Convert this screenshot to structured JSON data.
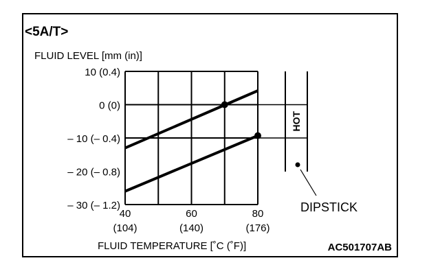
{
  "header": {
    "title": "<5A/T>"
  },
  "figure_id": "AC501707AB",
  "chart_data": {
    "type": "line",
    "ylabel": "FLUID LEVEL [mm (in)]",
    "xlabel": "FLUID TEMPERATURE [˚C (˚F)]",
    "xlim": [
      40,
      80
    ],
    "ylim": [
      -30,
      10
    ],
    "x_ticks": [
      {
        "value": 40,
        "label": "40",
        "sub": "(104)"
      },
      {
        "value": 60,
        "label": "60",
        "sub": "(140)"
      },
      {
        "value": 80,
        "label": "80",
        "sub": "(176)"
      }
    ],
    "y_ticks": [
      {
        "value": 10,
        "label": "10 (0.4)"
      },
      {
        "value": 0,
        "label": "0 (0)"
      },
      {
        "value": -10,
        "label": "– 10 (– 0.4)"
      },
      {
        "value": -20,
        "label": "– 20 (– 0.8)"
      },
      {
        "value": -30,
        "label": "– 30 (– 1.2)"
      }
    ],
    "x_grid": [
      40,
      50,
      60,
      70,
      80
    ],
    "y_grid": [
      10,
      0,
      -10,
      -30
    ],
    "grid": true,
    "series": [
      {
        "x": [
          40,
          80
        ],
        "y": [
          -13,
          4.2
        ],
        "marker": {
          "x": 70,
          "y": 0
        }
      },
      {
        "x": [
          40,
          80
        ],
        "y": [
          -26,
          -9.3
        ],
        "marker": {
          "x": 80,
          "y": -9.3
        }
      }
    ]
  },
  "dipstick": {
    "label": "DIPSTICK",
    "band_label": "HOT",
    "band_top_value": 0,
    "band_bottom_value": -10
  }
}
